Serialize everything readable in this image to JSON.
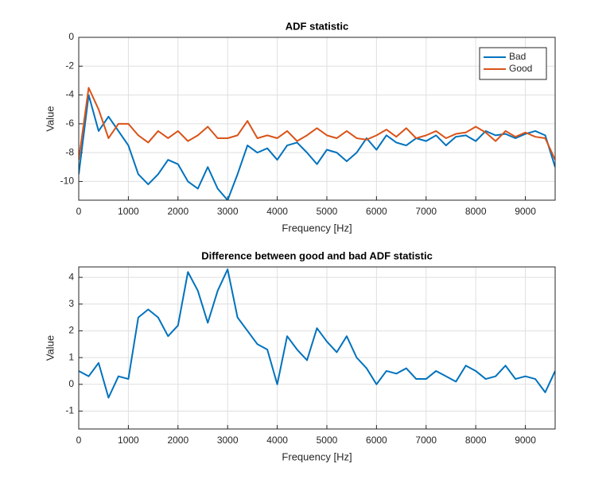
{
  "chart_data": [
    {
      "type": "line",
      "title": "ADF statistic",
      "xlabel": "Frequency [Hz]",
      "ylabel": "Value",
      "x": [
        0,
        200,
        400,
        600,
        800,
        1000,
        1200,
        1400,
        1600,
        1800,
        2000,
        2200,
        2400,
        2600,
        2800,
        3000,
        3200,
        3400,
        3600,
        3800,
        4000,
        4200,
        4400,
        4600,
        4800,
        5000,
        5200,
        5400,
        5600,
        5800,
        6000,
        6200,
        6400,
        6600,
        6800,
        7000,
        7200,
        7400,
        7600,
        7800,
        8000,
        8200,
        8400,
        8600,
        8800,
        9000,
        9200,
        9400,
        9600
      ],
      "series": [
        {
          "name": "Bad",
          "color": "#0072BD",
          "values": [
            -9.5,
            -4,
            -6.5,
            -5.5,
            -6.5,
            -7.5,
            -9.5,
            -10.2,
            -9.5,
            -8.5,
            -8.8,
            -10,
            -10.5,
            -9,
            -10.5,
            -11.3,
            -9.5,
            -7.5,
            -8,
            -7.7,
            -8.5,
            -7.5,
            -7.3,
            -8,
            -8.8,
            -7.8,
            -8,
            -8.6,
            -8,
            -7,
            -7.8,
            -6.8,
            -7.3,
            -7.5,
            -7,
            -7.2,
            -6.8,
            -7.5,
            -6.9,
            -6.8,
            -7.2,
            -6.5,
            -6.8,
            -6.7,
            -7,
            -6.7,
            -6.5,
            -6.8,
            -9
          ]
        },
        {
          "name": "Good",
          "color": "#D95319",
          "values": [
            -8.5,
            -3.5,
            -5,
            -7,
            -6,
            -6,
            -6.8,
            -7.3,
            -6.5,
            -7,
            -6.5,
            -7.2,
            -6.8,
            -6.2,
            -7,
            -7,
            -6.8,
            -5.8,
            -7,
            -6.8,
            -7,
            -6.5,
            -7.2,
            -6.8,
            -6.3,
            -6.8,
            -7,
            -6.5,
            -7,
            -7.1,
            -6.8,
            -6.4,
            -6.9,
            -6.3,
            -7,
            -6.8,
            -6.5,
            -7,
            -6.7,
            -6.6,
            -6.2,
            -6.6,
            -7.2,
            -6.5,
            -6.9,
            -6.6,
            -6.9,
            -7,
            -8.5
          ]
        }
      ],
      "xlim": [
        0,
        9600
      ],
      "xticks": [
        0,
        1000,
        2000,
        3000,
        4000,
        5000,
        6000,
        7000,
        8000,
        9000
      ],
      "ylim": [
        -11.3,
        0
      ],
      "yticks": [
        -10,
        -8,
        -6,
        -4,
        -2,
        0
      ],
      "grid": true,
      "legend": "northeast"
    },
    {
      "type": "line",
      "title": "Difference between good and bad ADF statistic",
      "xlabel": "Frequency [Hz]",
      "ylabel": "Value",
      "x": [
        0,
        200,
        400,
        600,
        800,
        1000,
        1200,
        1400,
        1600,
        1800,
        2000,
        2200,
        2400,
        2600,
        2800,
        3000,
        3200,
        3400,
        3600,
        3800,
        4000,
        4200,
        4400,
        4600,
        4800,
        5000,
        5200,
        5400,
        5600,
        5800,
        6000,
        6200,
        6400,
        6600,
        6800,
        7000,
        7200,
        7400,
        7600,
        7800,
        8000,
        8200,
        8400,
        8600,
        8800,
        9000,
        9200,
        9400,
        9600
      ],
      "series": [
        {
          "color": "#0072BD",
          "values": [
            0.5,
            0.3,
            0.8,
            -0.5,
            0.3,
            0.2,
            2.5,
            2.8,
            2.5,
            1.8,
            2.2,
            4.2,
            3.5,
            2.3,
            3.5,
            4.3,
            2.5,
            2,
            1.5,
            1.3,
            0,
            1.8,
            1.3,
            0.9,
            2.1,
            1.6,
            1.2,
            1.8,
            1,
            0.6,
            0,
            0.5,
            0.4,
            0.6,
            0.2,
            0.2,
            0.5,
            0.3,
            0.1,
            0.7,
            0.5,
            0.2,
            0.3,
            0.7,
            0.2,
            0.3,
            0.2,
            -0.3,
            0.5
          ]
        }
      ],
      "xlim": [
        0,
        9600
      ],
      "xticks": [
        0,
        1000,
        2000,
        3000,
        4000,
        5000,
        6000,
        7000,
        8000,
        9000
      ],
      "ylim": [
        -1.67,
        4.39
      ],
      "yticks": [
        -1,
        0,
        1,
        2,
        3,
        4
      ],
      "grid": true
    }
  ]
}
